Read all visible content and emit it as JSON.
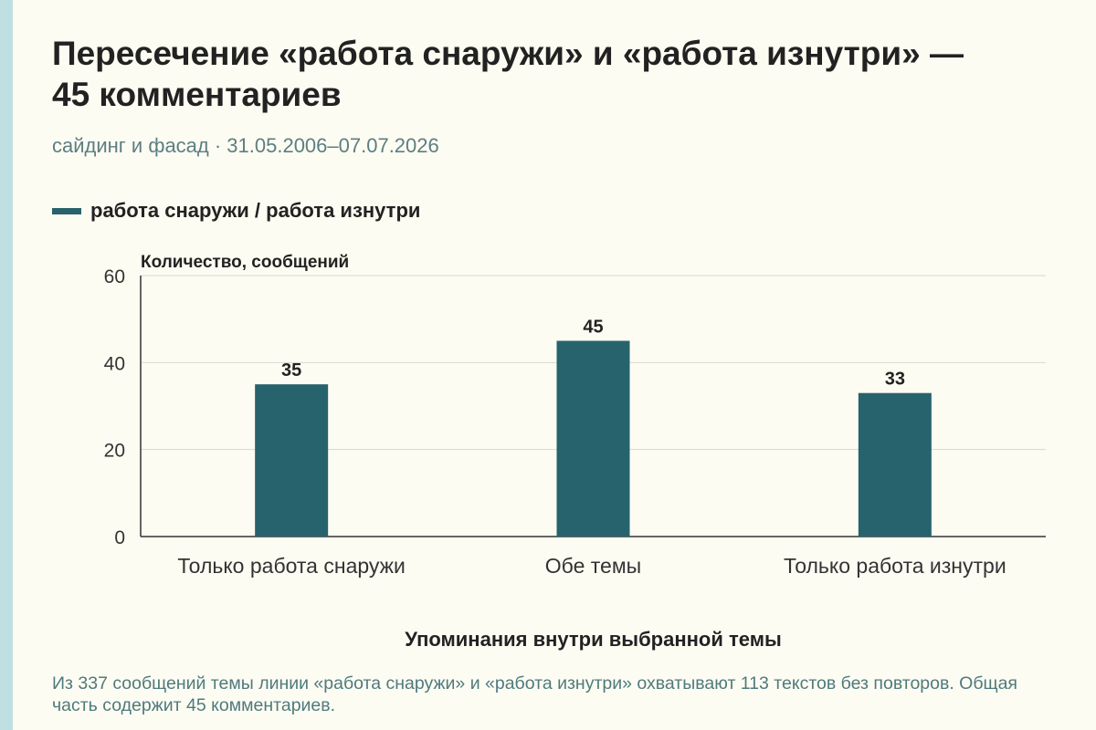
{
  "header": {
    "title": "Пересечение «работа снаружи» и «работа изнутри» — 45 комментариев",
    "subtitle": "сайдинг и фасад · 31.05.2006–07.07.2026"
  },
  "legend": {
    "label": "работа снаружи / работа изнутри",
    "color": "#27636d"
  },
  "chart_data": {
    "type": "bar",
    "categories": [
      "Только работа снаружи",
      "Обе темы",
      "Только работа изнутри"
    ],
    "series": [
      {
        "name": "работа снаружи / работа изнутри",
        "values": [
          35,
          45,
          33
        ]
      }
    ],
    "ylabel": "Количество, сообщений",
    "xlabel": "Упоминания внутри выбранной темы",
    "ylim": [
      0,
      60
    ],
    "yticks": [
      0,
      20,
      40,
      60
    ],
    "grid": true,
    "legend_position": "top-left",
    "bar_color": "#27636d"
  },
  "footnote": "Из 337 сообщений темы линии «работа снаружи» и «работа изнутри» охватывают 113 текстов без повторов. Общая часть содержит 45 комментариев."
}
